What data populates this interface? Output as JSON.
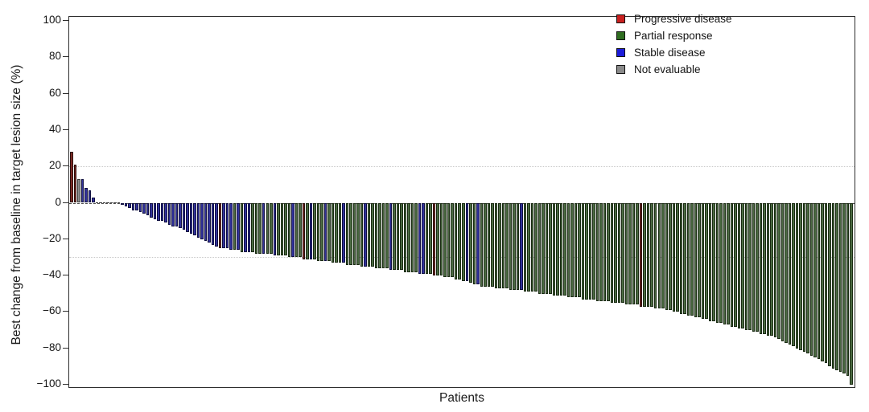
{
  "figure": {
    "title": "",
    "x_axis_label": "Patients",
    "y_axis_label": "Best change from baseline in target lesion size (%)"
  },
  "chart_data": {
    "type": "bar",
    "subtype": "waterfall",
    "title": "",
    "xlabel": "Patients",
    "ylabel": "Best change from baseline in target lesion size (%)",
    "ylim": [
      -100,
      100
    ],
    "y_ticks": [
      100,
      80,
      60,
      40,
      20,
      0,
      -20,
      -40,
      -60,
      -80,
      -100
    ],
    "reference_lines": [
      20,
      0,
      -30
    ],
    "grid": "dotted reference lines at +20, 0 and -30 only",
    "legend_position": "top-right-inside",
    "legend": [
      {
        "code": "P",
        "label": "Progressive disease",
        "swatch_color": "#c9201f",
        "bar_fill": "#7c2b27",
        "bar_edge": "#2a100d"
      },
      {
        "code": "G",
        "label": "Partial response",
        "swatch_color": "#2f6d20",
        "bar_fill": "#4b6a42",
        "bar_edge": "#1a2a13"
      },
      {
        "code": "S",
        "label": "Stable disease",
        "swatch_color": "#1c1cd9",
        "bar_fill": "#32329b",
        "bar_edge": "#0f0f40"
      },
      {
        "code": "N",
        "label": "Not evaluable",
        "swatch_color": "#8a8a8a",
        "bar_fill": "#8c8c8c",
        "bar_edge": "#3a3a3a"
      }
    ],
    "bars": [
      [
        28,
        "P"
      ],
      [
        21,
        "P"
      ],
      [
        13,
        "N"
      ],
      [
        13,
        "S"
      ],
      [
        8,
        "S"
      ],
      [
        7,
        "S"
      ],
      [
        3,
        "S"
      ],
      [
        0,
        "S"
      ],
      [
        0,
        "S"
      ],
      [
        0,
        "N"
      ],
      [
        0,
        "S"
      ],
      [
        0,
        "S"
      ],
      [
        0,
        "S"
      ],
      [
        0,
        "S"
      ],
      [
        -1,
        "S"
      ],
      [
        -2,
        "S"
      ],
      [
        -3,
        "S"
      ],
      [
        -4,
        "S"
      ],
      [
        -4,
        "S"
      ],
      [
        -5,
        "S"
      ],
      [
        -6,
        "S"
      ],
      [
        -7,
        "S"
      ],
      [
        -8,
        "S"
      ],
      [
        -9,
        "S"
      ],
      [
        -10,
        "S"
      ],
      [
        -10,
        "S"
      ],
      [
        -11,
        "S"
      ],
      [
        -12,
        "S"
      ],
      [
        -13,
        "S"
      ],
      [
        -13,
        "S"
      ],
      [
        -14,
        "S"
      ],
      [
        -15,
        "S"
      ],
      [
        -16,
        "S"
      ],
      [
        -17,
        "S"
      ],
      [
        -18,
        "S"
      ],
      [
        -19,
        "S"
      ],
      [
        -20,
        "S"
      ],
      [
        -21,
        "S"
      ],
      [
        -22,
        "S"
      ],
      [
        -23,
        "S"
      ],
      [
        -24,
        "S"
      ],
      [
        -25,
        "P"
      ],
      [
        -25,
        "S"
      ],
      [
        -25,
        "S"
      ],
      [
        -26,
        "S"
      ],
      [
        -26,
        "G"
      ],
      [
        -26,
        "S"
      ],
      [
        -27,
        "G"
      ],
      [
        -27,
        "S"
      ],
      [
        -27,
        "S"
      ],
      [
        -27,
        "G"
      ],
      [
        -28,
        "G"
      ],
      [
        -28,
        "G"
      ],
      [
        -28,
        "S"
      ],
      [
        -28,
        "G"
      ],
      [
        -28,
        "G"
      ],
      [
        -29,
        "S"
      ],
      [
        -29,
        "G"
      ],
      [
        -29,
        "G"
      ],
      [
        -29,
        "G"
      ],
      [
        -30,
        "G"
      ],
      [
        -30,
        "S"
      ],
      [
        -30,
        "G"
      ],
      [
        -30,
        "G"
      ],
      [
        -31,
        "P"
      ],
      [
        -31,
        "G"
      ],
      [
        -31,
        "S"
      ],
      [
        -31,
        "G"
      ],
      [
        -32,
        "G"
      ],
      [
        -32,
        "G"
      ],
      [
        -32,
        "S"
      ],
      [
        -32,
        "G"
      ],
      [
        -33,
        "G"
      ],
      [
        -33,
        "G"
      ],
      [
        -33,
        "G"
      ],
      [
        -33,
        "S"
      ],
      [
        -34,
        "G"
      ],
      [
        -34,
        "G"
      ],
      [
        -34,
        "G"
      ],
      [
        -34,
        "G"
      ],
      [
        -35,
        "G"
      ],
      [
        -35,
        "S"
      ],
      [
        -35,
        "G"
      ],
      [
        -35,
        "G"
      ],
      [
        -36,
        "G"
      ],
      [
        -36,
        "G"
      ],
      [
        -36,
        "G"
      ],
      [
        -36,
        "G"
      ],
      [
        -37,
        "S"
      ],
      [
        -37,
        "G"
      ],
      [
        -37,
        "G"
      ],
      [
        -37,
        "G"
      ],
      [
        -38,
        "G"
      ],
      [
        -38,
        "G"
      ],
      [
        -38,
        "G"
      ],
      [
        -38,
        "G"
      ],
      [
        -39,
        "S"
      ],
      [
        -39,
        "S"
      ],
      [
        -39,
        "G"
      ],
      [
        -39,
        "G"
      ],
      [
        -40,
        "P"
      ],
      [
        -40,
        "G"
      ],
      [
        -40,
        "G"
      ],
      [
        -41,
        "G"
      ],
      [
        -41,
        "G"
      ],
      [
        -41,
        "G"
      ],
      [
        -42,
        "G"
      ],
      [
        -42,
        "G"
      ],
      [
        -43,
        "G"
      ],
      [
        -43,
        "S"
      ],
      [
        -44,
        "G"
      ],
      [
        -45,
        "G"
      ],
      [
        -45,
        "S"
      ],
      [
        -46,
        "G"
      ],
      [
        -46,
        "G"
      ],
      [
        -46,
        "G"
      ],
      [
        -46,
        "G"
      ],
      [
        -47,
        "G"
      ],
      [
        -47,
        "G"
      ],
      [
        -47,
        "G"
      ],
      [
        -47,
        "G"
      ],
      [
        -48,
        "G"
      ],
      [
        -48,
        "G"
      ],
      [
        -48,
        "G"
      ],
      [
        -48,
        "S"
      ],
      [
        -49,
        "G"
      ],
      [
        -49,
        "G"
      ],
      [
        -49,
        "G"
      ],
      [
        -49,
        "G"
      ],
      [
        -50,
        "G"
      ],
      [
        -50,
        "G"
      ],
      [
        -50,
        "G"
      ],
      [
        -50,
        "G"
      ],
      [
        -51,
        "G"
      ],
      [
        -51,
        "G"
      ],
      [
        -51,
        "G"
      ],
      [
        -51,
        "G"
      ],
      [
        -52,
        "G"
      ],
      [
        -52,
        "G"
      ],
      [
        -52,
        "G"
      ],
      [
        -52,
        "G"
      ],
      [
        -53,
        "G"
      ],
      [
        -53,
        "G"
      ],
      [
        -53,
        "G"
      ],
      [
        -53,
        "G"
      ],
      [
        -54,
        "G"
      ],
      [
        -54,
        "G"
      ],
      [
        -54,
        "G"
      ],
      [
        -54,
        "G"
      ],
      [
        -55,
        "G"
      ],
      [
        -55,
        "G"
      ],
      [
        -55,
        "G"
      ],
      [
        -55,
        "G"
      ],
      [
        -56,
        "G"
      ],
      [
        -56,
        "G"
      ],
      [
        -56,
        "G"
      ],
      [
        -56,
        "G"
      ],
      [
        -57,
        "P"
      ],
      [
        -57,
        "G"
      ],
      [
        -57,
        "G"
      ],
      [
        -57,
        "G"
      ],
      [
        -58,
        "G"
      ],
      [
        -58,
        "G"
      ],
      [
        -58,
        "G"
      ],
      [
        -59,
        "G"
      ],
      [
        -59,
        "G"
      ],
      [
        -60,
        "G"
      ],
      [
        -60,
        "G"
      ],
      [
        -61,
        "G"
      ],
      [
        -61,
        "G"
      ],
      [
        -62,
        "G"
      ],
      [
        -62,
        "G"
      ],
      [
        -63,
        "G"
      ],
      [
        -63,
        "G"
      ],
      [
        -64,
        "G"
      ],
      [
        -64,
        "G"
      ],
      [
        -65,
        "G"
      ],
      [
        -65,
        "G"
      ],
      [
        -66,
        "G"
      ],
      [
        -66,
        "G"
      ],
      [
        -67,
        "G"
      ],
      [
        -67,
        "G"
      ],
      [
        -68,
        "G"
      ],
      [
        -68,
        "G"
      ],
      [
        -69,
        "G"
      ],
      [
        -69,
        "G"
      ],
      [
        -70,
        "G"
      ],
      [
        -70,
        "G"
      ],
      [
        -71,
        "G"
      ],
      [
        -71,
        "G"
      ],
      [
        -72,
        "G"
      ],
      [
        -72,
        "G"
      ],
      [
        -73,
        "G"
      ],
      [
        -73,
        "G"
      ],
      [
        -74,
        "G"
      ],
      [
        -75,
        "G"
      ],
      [
        -76,
        "G"
      ],
      [
        -77,
        "G"
      ],
      [
        -78,
        "G"
      ],
      [
        -79,
        "G"
      ],
      [
        -80,
        "G"
      ],
      [
        -81,
        "G"
      ],
      [
        -82,
        "G"
      ],
      [
        -83,
        "G"
      ],
      [
        -84,
        "G"
      ],
      [
        -85,
        "G"
      ],
      [
        -86,
        "G"
      ],
      [
        -87,
        "G"
      ],
      [
        -88,
        "G"
      ],
      [
        -90,
        "G"
      ],
      [
        -91,
        "G"
      ],
      [
        -92,
        "G"
      ],
      [
        -93,
        "G"
      ],
      [
        -94,
        "G"
      ],
      [
        -95,
        "G"
      ],
      [
        -100,
        "G"
      ]
    ]
  }
}
